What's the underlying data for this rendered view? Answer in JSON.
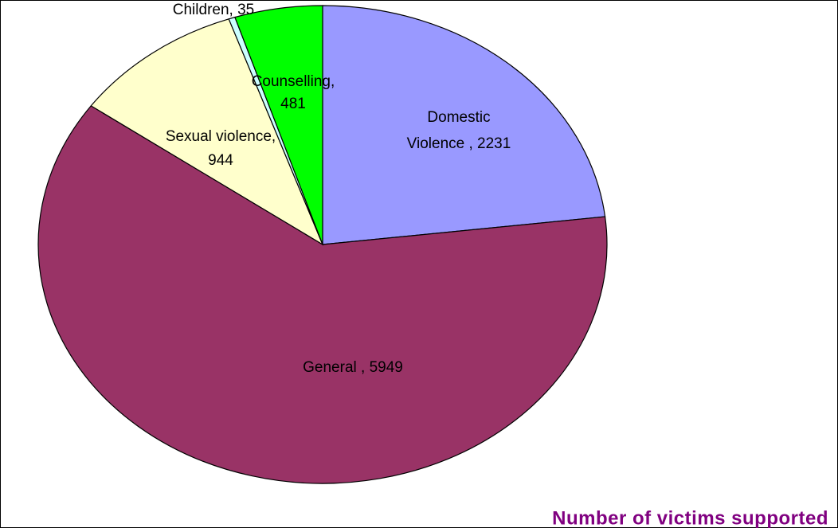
{
  "chart_data": {
    "type": "pie",
    "title": "Number of victims supported",
    "values": [
      2231,
      5949,
      944,
      35,
      481
    ],
    "value_labels": [
      [
        "Domestic",
        "Violence , 2231"
      ],
      [
        "General , 5949"
      ],
      [
        "Sexual violence,",
        "944"
      ],
      [
        "Children, 35"
      ],
      [
        "Counselling,",
        "481"
      ]
    ],
    "colors": [
      "#9999ff",
      "#993366",
      "#ffffcc",
      "#ccffff",
      "#00ff00"
    ]
  }
}
